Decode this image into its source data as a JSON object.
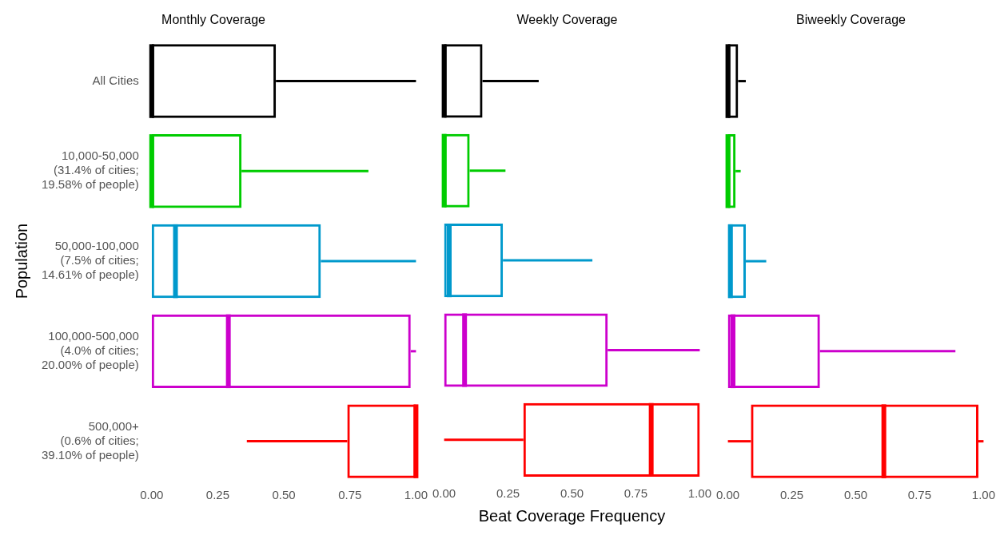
{
  "chart_data": [
    {
      "type": "box",
      "orientation": "horizontal",
      "title": "Monthly Coverage",
      "ylabel": "Population",
      "tick_labels": "xy",
      "categories": [
        "All Cities",
        "10,000-50,000\n(31.4% of cities;\n19.58% of people)",
        "50,000-100,000\n(7.5% of cities;\n14.61% of people)",
        "100,000-500,000\n(4.0% of cities;\n20.00% of people)",
        "500,000+\n(0.6% of cities;\n39.10% of people)"
      ],
      "colors": [
        "#000000",
        "#00cc00",
        "#0099cc",
        "#cc00cc",
        "#ff0000"
      ],
      "boxes": [
        {
          "low": 0,
          "q1": 0,
          "median": 0,
          "q3": 0.47,
          "high": 1.0
        },
        {
          "low": 0,
          "q1": 0,
          "median": 0,
          "q3": 0.34,
          "high": 0.82
        },
        {
          "low": 0,
          "q1": 0,
          "median": 0.09,
          "q3": 0.64,
          "high": 1.0
        },
        {
          "low": 0,
          "q1": 0,
          "median": 0.29,
          "q3": 0.98,
          "high": 1.0
        },
        {
          "low": 0.36,
          "q1": 0.74,
          "median": 1.0,
          "q3": 1.0,
          "high": 1.0
        }
      ],
      "xlim": [
        0,
        1
      ],
      "xticks": [
        {
          "value": 0,
          "label": "0.00"
        },
        {
          "value": 0.25,
          "label": "0.25"
        },
        {
          "value": 0.5,
          "label": "0.50"
        },
        {
          "value": 0.75,
          "label": "0.75"
        },
        {
          "value": 1,
          "label": "1.00"
        }
      ]
    },
    {
      "type": "box",
      "orientation": "horizontal",
      "title": "Weekly Coverage",
      "xlabel": "Beat Coverage Frequency",
      "tick_labels": "x",
      "categories": [
        null,
        null,
        null,
        null,
        null
      ],
      "colors": [
        "#000000",
        "#00cc00",
        "#0099cc",
        "#cc00cc",
        "#ff0000"
      ],
      "boxes": [
        {
          "low": 0,
          "q1": 0,
          "median": 0,
          "q3": 0.15,
          "high": 0.37
        },
        {
          "low": 0,
          "q1": 0,
          "median": 0,
          "q3": 0.1,
          "high": 0.24
        },
        {
          "low": 0,
          "q1": 0,
          "median": 0.02,
          "q3": 0.23,
          "high": 0.58
        },
        {
          "low": 0,
          "q1": 0,
          "median": 0.08,
          "q3": 0.64,
          "high": 1.0
        },
        {
          "low": 0,
          "q1": 0.31,
          "median": 0.81,
          "q3": 1.0,
          "high": 1.0
        }
      ],
      "xlim": [
        0,
        1
      ],
      "xticks": [
        {
          "value": 0,
          "label": "0.00"
        },
        {
          "value": 0.25,
          "label": "0.25"
        },
        {
          "value": 0.5,
          "label": "0.50"
        },
        {
          "value": 0.75,
          "label": "0.75"
        },
        {
          "value": 1,
          "label": "1.00"
        }
      ]
    },
    {
      "type": "box",
      "orientation": "horizontal",
      "title": "Biweekly Coverage",
      "tick_labels": "x",
      "categories": [
        null,
        null,
        null,
        null,
        null
      ],
      "colors": [
        "#000000",
        "#00cc00",
        "#0099cc",
        "#cc00cc",
        "#ff0000"
      ],
      "boxes": [
        {
          "low": 0,
          "q1": 0,
          "median": 0,
          "q3": 0.04,
          "high": 0.07
        },
        {
          "low": 0,
          "q1": 0,
          "median": 0,
          "q3": 0.03,
          "high": 0.05
        },
        {
          "low": 0,
          "q1": 0,
          "median": 0.01,
          "q3": 0.07,
          "high": 0.15
        },
        {
          "low": 0,
          "q1": 0,
          "median": 0.02,
          "q3": 0.36,
          "high": 0.89
        },
        {
          "low": 0,
          "q1": 0.09,
          "median": 0.61,
          "q3": 0.98,
          "high": 1.0
        }
      ],
      "xlim": [
        0,
        1
      ],
      "xticks": [
        {
          "value": 0,
          "label": "0.00"
        },
        {
          "value": 0.25,
          "label": "0.25"
        },
        {
          "value": 0.5,
          "label": "0.50"
        },
        {
          "value": 0.75,
          "label": "0.75"
        },
        {
          "value": 1,
          "label": "1.00"
        }
      ]
    }
  ]
}
